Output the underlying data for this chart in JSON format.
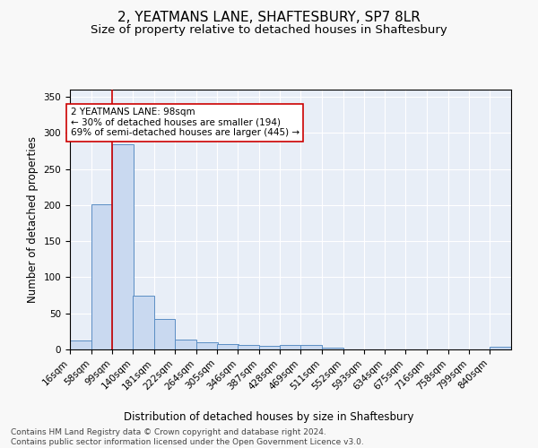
{
  "title": "2, YEATMANS LANE, SHAFTESBURY, SP7 8LR",
  "subtitle": "Size of property relative to detached houses in Shaftesbury",
  "xlabel": "Distribution of detached houses by size in Shaftesbury",
  "ylabel": "Number of detached properties",
  "footnote1": "Contains HM Land Registry data © Crown copyright and database right 2024.",
  "footnote2": "Contains public sector information licensed under the Open Government Licence v3.0.",
  "annotation_title": "2 YEATMANS LANE: 98sqm",
  "annotation_line2": "← 30% of detached houses are smaller (194)",
  "annotation_line3": "69% of semi-detached houses are larger (445) →",
  "bar_labels": [
    "16sqm",
    "58sqm",
    "99sqm",
    "140sqm",
    "181sqm",
    "222sqm",
    "264sqm",
    "305sqm",
    "346sqm",
    "387sqm",
    "428sqm",
    "469sqm",
    "511sqm",
    "552sqm",
    "593sqm",
    "634sqm",
    "675sqm",
    "716sqm",
    "758sqm",
    "799sqm",
    "840sqm"
  ],
  "bar_values": [
    13,
    201,
    284,
    75,
    42,
    14,
    10,
    7,
    6,
    5,
    6,
    6,
    3,
    0,
    0,
    0,
    0,
    0,
    0,
    0,
    4
  ],
  "bar_color": "#c9d9f0",
  "bar_edge_color": "#5b8ec4",
  "red_line_color": "#cc0000",
  "annotation_box_color": "#ffffff",
  "annotation_box_edge": "#cc0000",
  "ylim": [
    0,
    360
  ],
  "yticks": [
    0,
    50,
    100,
    150,
    200,
    250,
    300,
    350
  ],
  "background_color": "#e8eef7",
  "grid_color": "#ffffff",
  "title_fontsize": 11,
  "subtitle_fontsize": 9.5,
  "axis_label_fontsize": 8.5,
  "tick_fontsize": 7.5,
  "footnote_fontsize": 6.5,
  "annotation_fontsize": 7.5
}
